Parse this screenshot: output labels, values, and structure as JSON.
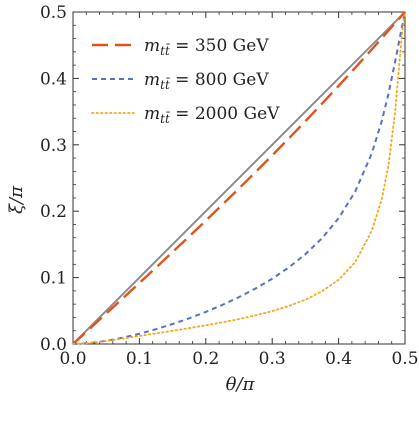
{
  "chart_data": {
    "type": "line",
    "xlabel": "θ/π",
    "ylabel": "ξ/π",
    "xlim": [
      0,
      0.5
    ],
    "ylim": [
      0,
      0.5
    ],
    "x_ticks": [
      "0.0",
      "0.1",
      "0.2",
      "0.3",
      "0.4",
      "0.5"
    ],
    "y_ticks": [
      "0.0",
      "0.1",
      "0.2",
      "0.3",
      "0.4",
      "0.5"
    ],
    "grid": false,
    "legend_position": "top-left",
    "reference_line": {
      "x": [
        0,
        0.5
      ],
      "y": [
        0,
        0.5
      ],
      "color": "#8c8c8c"
    },
    "series": [
      {
        "name": "m_tt̄ = 350 GeV",
        "legend_prefix": "m",
        "legend_sub": "tt̄",
        "legend_suffix": " = 350 GeV",
        "style": "dashed",
        "color": "#e0541c",
        "x": [
          0,
          0.025,
          0.05,
          0.075,
          0.1,
          0.125,
          0.15,
          0.175,
          0.2,
          0.225,
          0.25,
          0.275,
          0.3,
          0.325,
          0.35,
          0.375,
          0.4,
          0.425,
          0.45,
          0.475,
          0.5
        ],
        "y": [
          0,
          0.0229,
          0.0458,
          0.0688,
          0.0919,
          0.1151,
          0.1385,
          0.162,
          0.1858,
          0.2099,
          0.2343,
          0.259,
          0.2841,
          0.3096,
          0.3355,
          0.3619,
          0.3887,
          0.416,
          0.4437,
          0.4718,
          0.5
        ]
      },
      {
        "name": "m_tt̄ = 800 GeV",
        "legend_prefix": "m",
        "legend_sub": "tt̄",
        "legend_suffix": " = 800 GeV",
        "style": "short-dashed",
        "color": "#5a6fc8",
        "x": [
          0,
          0.025,
          0.05,
          0.075,
          0.1,
          0.125,
          0.15,
          0.175,
          0.2,
          0.225,
          0.25,
          0.275,
          0.3,
          0.325,
          0.35,
          0.375,
          0.4,
          0.425,
          0.45,
          0.465,
          0.475,
          0.485,
          0.49,
          0.495,
          0.5
        ],
        "y": [
          0,
          0.0013,
          0.0047,
          0.0095,
          0.0154,
          0.0223,
          0.0301,
          0.0387,
          0.0483,
          0.0589,
          0.0706,
          0.0836,
          0.0983,
          0.1153,
          0.1352,
          0.1592,
          0.1894,
          0.2296,
          0.2871,
          0.3357,
          0.3763,
          0.4245,
          0.4503,
          0.4756,
          0.5
        ]
      },
      {
        "name": "m_tt̄ = 2000 GeV",
        "legend_prefix": "m",
        "legend_sub": "tt̄",
        "legend_suffix": " = 2000 GeV",
        "style": "dotted",
        "color": "#f2a81c",
        "x": [
          0,
          0.025,
          0.05,
          0.075,
          0.1,
          0.125,
          0.15,
          0.175,
          0.2,
          0.225,
          0.25,
          0.275,
          0.3,
          0.325,
          0.35,
          0.375,
          0.4,
          0.425,
          0.45,
          0.465,
          0.475,
          0.485,
          0.49,
          0.495,
          0.5
        ],
        "y": [
          0,
          0.0016,
          0.0046,
          0.0082,
          0.0121,
          0.016,
          0.0199,
          0.0239,
          0.0281,
          0.0326,
          0.0375,
          0.0431,
          0.0495,
          0.0572,
          0.0668,
          0.0794,
          0.0967,
          0.1231,
          0.1706,
          0.2182,
          0.2682,
          0.3485,
          0.4052,
          0.4631,
          0.5
        ]
      }
    ]
  }
}
